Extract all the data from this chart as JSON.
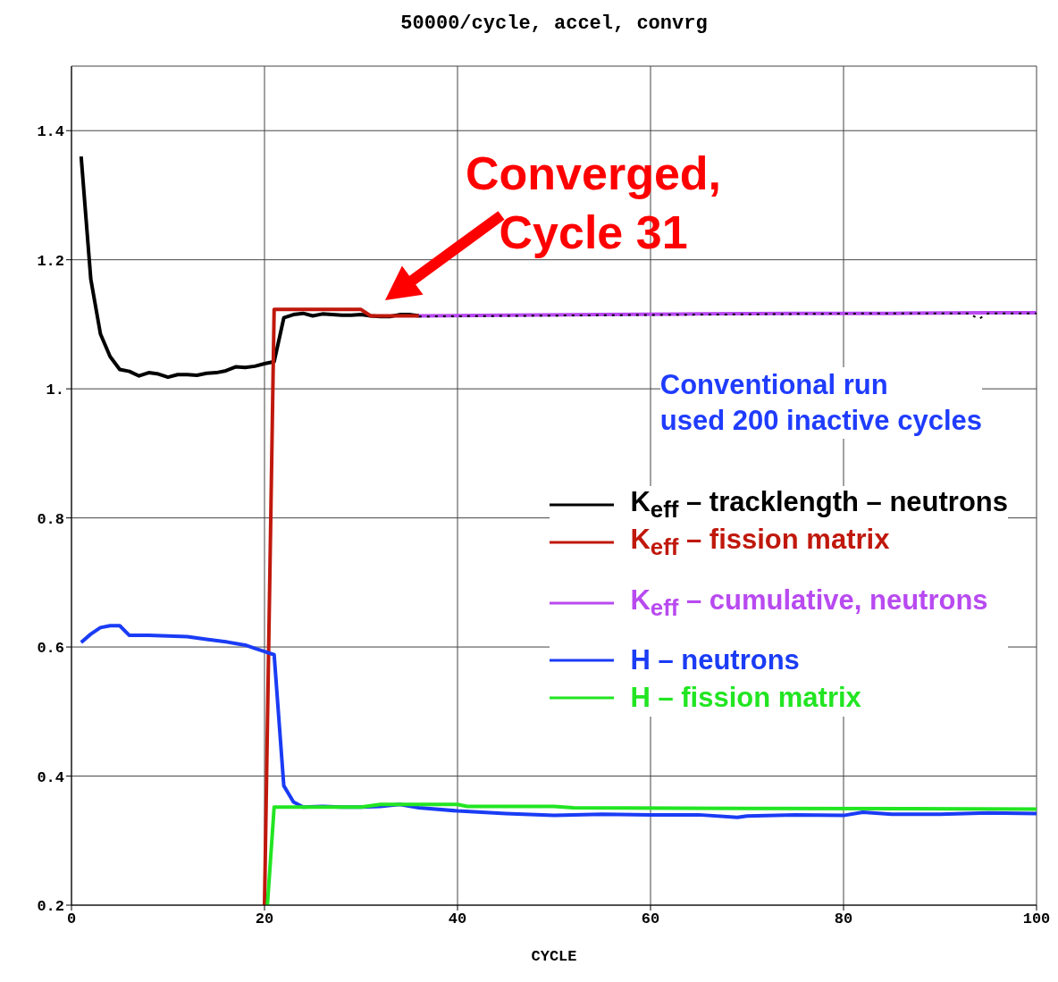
{
  "chart_data": {
    "type": "line",
    "title": "50000/cycle, accel, convrg",
    "xlabel": "CYCLE",
    "xlim": [
      0,
      100
    ],
    "xticks": [
      0,
      20,
      40,
      60,
      80,
      100
    ],
    "ylim": [
      0.2,
      1.5
    ],
    "yticks": [
      {
        "value": 0.2,
        "label": "0.2"
      },
      {
        "value": 0.4,
        "label": "0.4"
      },
      {
        "value": 0.6,
        "label": "0.6"
      },
      {
        "value": 0.8,
        "label": "0.8"
      },
      {
        "value": 1,
        "label": "1."
      },
      {
        "value": 1.2,
        "label": "1.2"
      },
      {
        "value": 1.4,
        "label": "1.4"
      }
    ],
    "grid": true,
    "legend": "right",
    "marker": "none",
    "series": [
      {
        "name": "K$_{eff}$ – tracklength – neutrons",
        "color": "#000000",
        "x": [
          1,
          2,
          3,
          4,
          5,
          6,
          7,
          8,
          9,
          10,
          11,
          12,
          13,
          14,
          15,
          16,
          17,
          18,
          19,
          20,
          21,
          22,
          23,
          24,
          25,
          26,
          27,
          28,
          29,
          30,
          31,
          32,
          33,
          34,
          35,
          36
        ],
        "values": [
          1.36,
          1.17,
          1.085,
          1.05,
          1.03,
          1.027,
          1.02,
          1.025,
          1.023,
          1.018,
          1.022,
          1.022,
          1.021,
          1.024,
          1.025,
          1.028,
          1.034,
          1.033,
          1.035,
          1.039,
          1.042,
          1.11,
          1.115,
          1.117,
          1.113,
          1.116,
          1.115,
          1.114,
          1.114,
          1.115,
          1.113,
          1.112,
          1.112,
          1.115,
          1.115,
          1.113
        ]
      },
      {
        "name": "K$_{eff}$ – fission matrix",
        "color": "#c0180c",
        "x": [
          20,
          21,
          30,
          31,
          36
        ],
        "values": [
          0.2,
          1.123,
          1.123,
          1.113,
          1.113
        ]
      },
      {
        "name": "K$_{eff}$ – cumulative, neutrons",
        "color": "#b84af0",
        "x": [
          36,
          45,
          55,
          65,
          75,
          85,
          95,
          100
        ],
        "values": [
          1.113,
          1.114,
          1.115,
          1.116,
          1.117,
          1.117,
          1.118,
          1.118
        ]
      },
      {
        "color": "#000000",
        "line_style": "dotted",
        "x": [
          36,
          45,
          55,
          65,
          75,
          85,
          93,
          94,
          95,
          100
        ],
        "values": [
          1.112,
          1.113,
          1.114,
          1.115,
          1.116,
          1.117,
          1.117,
          1.108,
          1.117,
          1.117
        ]
      },
      {
        "name": "H – neutrons",
        "color": "#1a3cf5",
        "x": [
          1,
          2,
          3,
          4,
          5,
          6,
          7,
          8,
          10,
          12,
          14,
          16,
          18,
          19,
          20,
          21,
          22,
          23,
          24,
          26,
          28,
          30,
          32,
          34,
          36,
          40,
          45,
          50,
          55,
          60,
          65,
          69,
          70,
          75,
          80,
          82,
          85,
          90,
          95,
          100
        ],
        "values": [
          0.607,
          0.62,
          0.63,
          0.633,
          0.633,
          0.618,
          0.618,
          0.618,
          0.617,
          0.616,
          0.612,
          0.608,
          0.603,
          0.598,
          0.593,
          0.588,
          0.385,
          0.36,
          0.352,
          0.353,
          0.352,
          0.352,
          0.353,
          0.356,
          0.351,
          0.346,
          0.342,
          0.339,
          0.341,
          0.34,
          0.34,
          0.336,
          0.338,
          0.34,
          0.339,
          0.344,
          0.341,
          0.341,
          0.343,
          0.342
        ]
      },
      {
        "name": "H – fission matrix",
        "color": "#22e522",
        "x": [
          20.3,
          21,
          30,
          32,
          40,
          41,
          50,
          52,
          70,
          100
        ],
        "values": [
          0.2,
          0.352,
          0.352,
          0.356,
          0.356,
          0.353,
          0.353,
          0.351,
          0.35,
          0.349
        ]
      }
    ],
    "annotations": [
      {
        "text": "Converged,\nCycle 31",
        "x": 31,
        "y": 1.113
      },
      "Conventional run\nused 200 inactive cycles"
    ]
  }
}
